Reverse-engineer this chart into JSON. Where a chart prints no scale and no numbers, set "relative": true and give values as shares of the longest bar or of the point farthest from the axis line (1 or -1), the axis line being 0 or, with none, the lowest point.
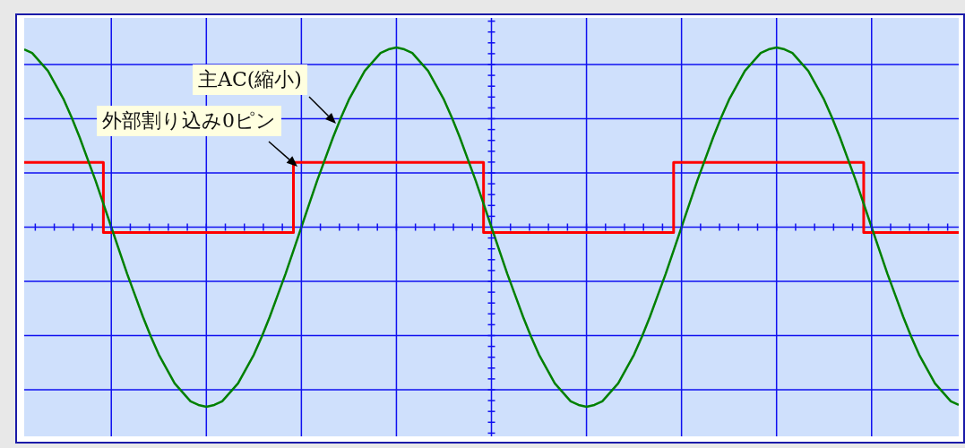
{
  "chart_data": {
    "type": "line",
    "relative": true,
    "grid": true,
    "legend": false,
    "marker": "none",
    "categories": [
      null,
      null,
      null,
      null,
      null,
      null,
      null,
      null,
      null,
      null,
      null,
      null,
      null,
      null,
      null,
      null,
      null,
      null,
      null,
      null,
      null,
      null,
      null,
      null,
      null,
      null,
      null,
      null,
      null,
      null,
      null,
      null,
      null,
      null,
      null,
      null,
      null,
      null,
      null,
      null,
      null,
      null,
      null,
      null,
      null,
      null,
      null,
      null,
      null,
      null,
      null,
      null,
      null,
      null,
      null,
      null,
      null,
      null,
      null,
      null,
      null,
      null,
      null,
      null,
      null,
      null,
      null,
      null,
      null,
      null,
      null,
      null,
      null,
      null,
      null,
      null,
      null,
      null,
      null,
      null,
      null,
      null,
      null,
      null,
      null,
      null,
      null,
      null,
      null,
      null,
      null,
      null,
      null,
      null,
      null,
      null,
      null,
      null,
      null,
      null,
      null,
      null,
      null,
      null,
      null,
      null,
      null,
      null,
      null,
      null,
      null,
      null,
      null,
      null,
      null,
      null,
      null,
      null,
      null
    ],
    "series": [
      {
        "type": "line",
        "color": "#008000",
        "values": [
          0.99,
          0.97,
          0.92,
          0.87,
          0.79,
          0.71,
          0.61,
          0.5,
          0.38,
          0.26,
          0.13,
          0,
          -0.13,
          -0.26,
          -0.38,
          -0.5,
          -0.61,
          -0.71,
          -0.79,
          -0.87,
          -0.92,
          -0.97,
          -0.99,
          -1,
          -0.99,
          -0.97,
          -0.92,
          -0.87,
          -0.79,
          -0.71,
          -0.61,
          -0.5,
          -0.38,
          -0.26,
          -0.13,
          0,
          0.13,
          0.26,
          0.38,
          0.5,
          0.61,
          0.71,
          0.79,
          0.87,
          0.92,
          0.97,
          0.99,
          1,
          0.99,
          0.97,
          0.92,
          0.87,
          0.79,
          0.71,
          0.61,
          0.5,
          0.38,
          0.26,
          0.13,
          0,
          -0.13,
          -0.26,
          -0.38,
          -0.5,
          -0.61,
          -0.71,
          -0.79,
          -0.87,
          -0.92,
          -0.97,
          -0.99,
          -1,
          -0.99,
          -0.97,
          -0.92,
          -0.87,
          -0.79,
          -0.71,
          -0.61,
          -0.5,
          -0.38,
          -0.26,
          -0.13,
          0,
          0.13,
          0.26,
          0.38,
          0.5,
          0.61,
          0.71,
          0.79,
          0.87,
          0.92,
          0.97,
          0.99,
          1,
          0.99,
          0.97,
          0.92,
          0.87,
          0.79,
          0.71,
          0.61,
          0.5,
          0.38,
          0.26,
          0.13,
          0,
          -0.13,
          -0.26,
          -0.38,
          -0.5,
          -0.61,
          -0.71,
          -0.79,
          -0.87,
          -0.92,
          -0.97,
          -0.99
        ]
      },
      {
        "type": "step",
        "color": "#ff0000",
        "values": [
          0.36,
          0.36,
          0.36,
          0.36,
          0.36,
          0.36,
          0.36,
          0.36,
          0.36,
          0.36,
          0.36,
          -0.03,
          -0.03,
          -0.03,
          -0.03,
          -0.03,
          -0.03,
          -0.03,
          -0.03,
          -0.03,
          -0.03,
          -0.03,
          -0.03,
          -0.03,
          -0.03,
          -0.03,
          -0.03,
          -0.03,
          -0.03,
          -0.03,
          -0.03,
          -0.03,
          -0.03,
          -0.03,
          -0.03,
          0.36,
          0.36,
          0.36,
          0.36,
          0.36,
          0.36,
          0.36,
          0.36,
          0.36,
          0.36,
          0.36,
          0.36,
          0.36,
          0.36,
          0.36,
          0.36,
          0.36,
          0.36,
          0.36,
          0.36,
          0.36,
          0.36,
          0.36,
          0.36,
          -0.03,
          -0.03,
          -0.03,
          -0.03,
          -0.03,
          -0.03,
          -0.03,
          -0.03,
          -0.03,
          -0.03,
          -0.03,
          -0.03,
          -0.03,
          -0.03,
          -0.03,
          -0.03,
          -0.03,
          -0.03,
          -0.03,
          -0.03,
          -0.03,
          -0.03,
          -0.03,
          -0.03,
          0.36,
          0.36,
          0.36,
          0.36,
          0.36,
          0.36,
          0.36,
          0.36,
          0.36,
          0.36,
          0.36,
          0.36,
          0.36,
          0.36,
          0.36,
          0.36,
          0.36,
          0.36,
          0.36,
          0.36,
          0.36,
          0.36,
          0.36,
          0.36,
          -0.03,
          -0.03,
          -0.03,
          -0.03,
          -0.03,
          -0.03,
          -0.03,
          -0.03,
          -0.03,
          -0.03,
          -0.03,
          -0.03
        ]
      }
    ],
    "annotations": [
      "主AC(縮小)",
      "外部割り込み0ピン"
    ]
  }
}
